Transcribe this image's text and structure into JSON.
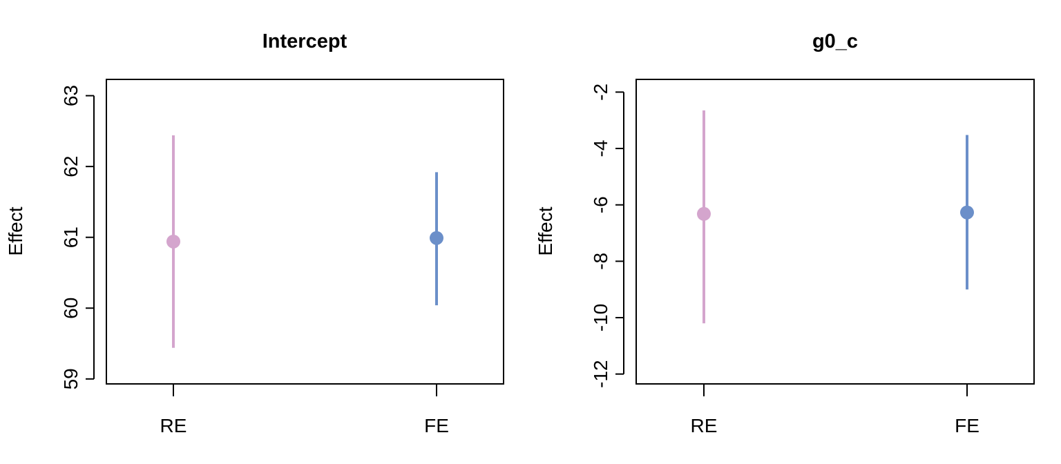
{
  "chart_data": [
    {
      "type": "scatter",
      "title": "Intercept",
      "xlabel": "",
      "ylabel": "Effect",
      "categories": [
        "RE",
        "FE"
      ],
      "ylim": [
        58.93,
        63.23
      ],
      "yticks": [
        "59",
        "60",
        "61",
        "62",
        "63"
      ],
      "grid": false,
      "series": [
        {
          "name": "RE",
          "estimate": 60.94,
          "lower": 59.44,
          "upper": 62.44,
          "color": "#d4a5cd"
        },
        {
          "name": "FE",
          "estimate": 60.99,
          "lower": 60.04,
          "upper": 61.92,
          "color": "#6b8fc9"
        }
      ]
    },
    {
      "type": "scatter",
      "title": "g0_c",
      "xlabel": "",
      "ylabel": "Effect",
      "categories": [
        "RE",
        "FE"
      ],
      "ylim": [
        -12.35,
        -1.55
      ],
      "yticks": [
        "-12",
        "-10",
        "-8",
        "-6",
        "-4",
        "-2"
      ],
      "grid": false,
      "series": [
        {
          "name": "RE",
          "estimate": -6.32,
          "lower": -10.2,
          "upper": -2.65,
          "color": "#d4a5cd"
        },
        {
          "name": "FE",
          "estimate": -6.27,
          "lower": -9.0,
          "upper": -3.52,
          "color": "#6b8fc9"
        }
      ]
    }
  ]
}
